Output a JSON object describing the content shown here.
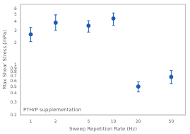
{
  "chart_data": {
    "type": "scatter",
    "x": [
      1,
      2,
      5,
      10,
      20,
      50
    ],
    "values": [
      2.65,
      3.85,
      3.5,
      4.4,
      0.5,
      0.68
    ],
    "yerr_low": [
      0.55,
      0.85,
      0.65,
      0.85,
      0.08,
      0.13
    ],
    "yerr_high": [
      0.65,
      1.1,
      0.6,
      0.85,
      0.08,
      0.15
    ],
    "color": "#1a5cb5",
    "xlabel": "Sweep Repetition Rate (Hz)",
    "ylabel": "Max Shear Stress (mPa)",
    "annotations": [
      "PTHrP supplementation"
    ],
    "log": true,
    "xlim": [
      0.75,
      75
    ],
    "ylim": [
      0.2,
      7
    ],
    "xticks": [
      1,
      2,
      5,
      10,
      20,
      50
    ],
    "yticks": [
      0.2,
      0.3,
      0.4,
      0.5,
      0.6,
      0.7,
      0.8,
      0.9,
      1,
      2,
      3,
      4,
      5,
      6
    ],
    "grid": false
  }
}
